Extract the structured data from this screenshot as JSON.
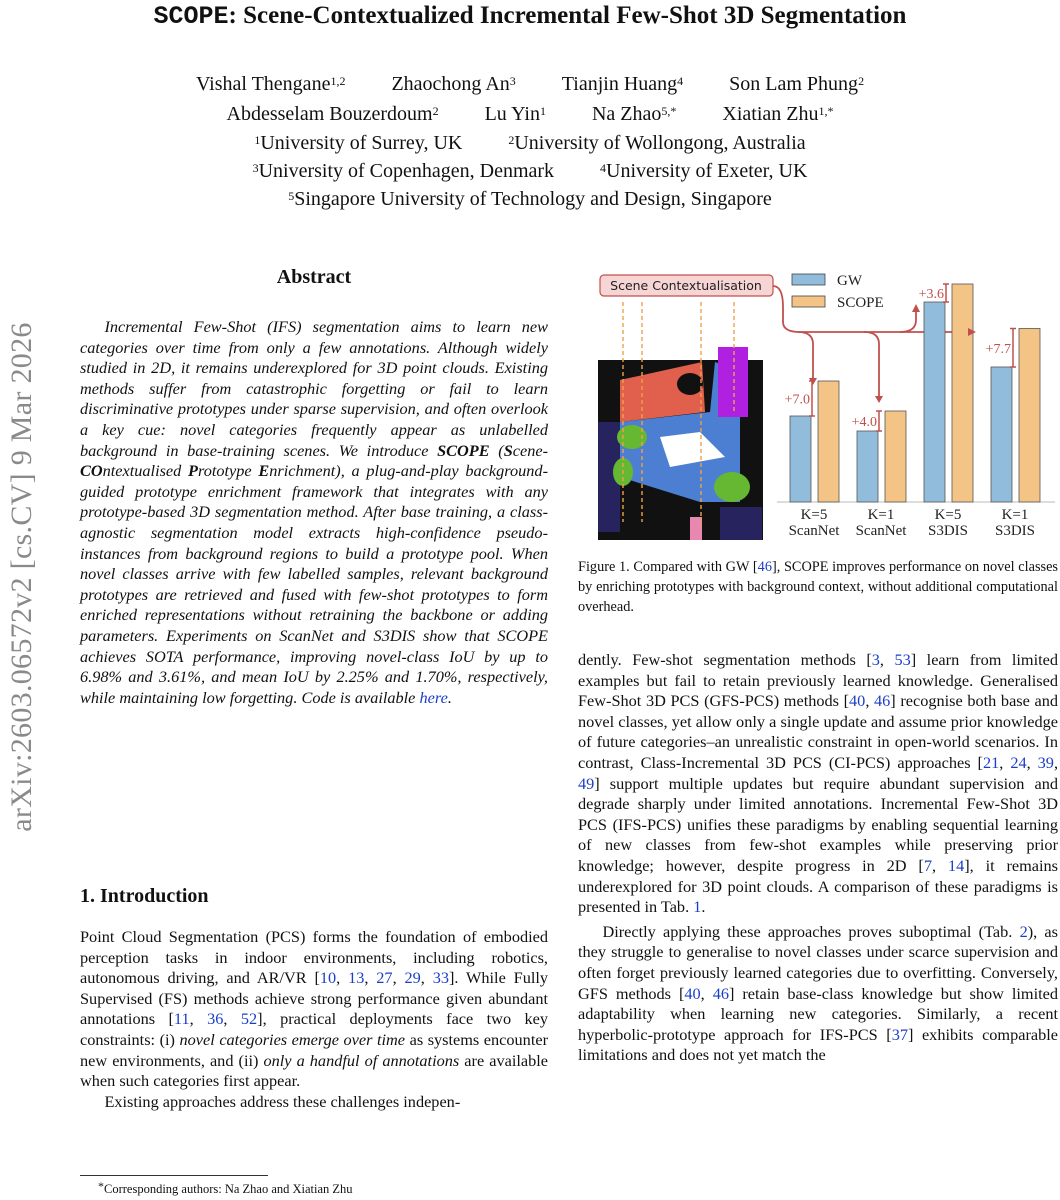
{
  "title": {
    "mono": "SCOPE",
    "rest": ": Scene-Contextualized Incremental Few-Shot 3D Segmentation"
  },
  "authors": {
    "row1": [
      {
        "name": "Vishal Thengane",
        "aff": "1,2"
      },
      {
        "name": "Zhaochong An",
        "aff": "3"
      },
      {
        "name": "Tianjin Huang",
        "aff": "4"
      },
      {
        "name": "Son Lam Phung",
        "aff": "2"
      }
    ],
    "row2": [
      {
        "name": "Abdesselam Bouzerdoum",
        "aff": "2"
      },
      {
        "name": "Lu Yin",
        "aff": "1"
      },
      {
        "name": "Na Zhao",
        "aff": "5,*"
      },
      {
        "name": "Xiatian Zhu",
        "aff": "1,*"
      }
    ],
    "affiliations": [
      [
        {
          "n": "1",
          "t": "University of Surrey, UK"
        },
        {
          "n": "2",
          "t": "University of Wollongong, Australia"
        }
      ],
      [
        {
          "n": "3",
          "t": "University of Copenhagen, Denmark"
        },
        {
          "n": "4",
          "t": "University of Exeter, UK"
        }
      ],
      [
        {
          "n": "5",
          "t": "Singapore University of Technology and Design, Singapore"
        }
      ]
    ]
  },
  "arxiv_stamp": "arXiv:2603.06572v2  [cs.CV]  9 Mar 2026",
  "abstract": {
    "heading": "Abstract",
    "segments": [
      [
        "Incremental Few-Shot (IFS) segmentation aims to learn new categories over time from only a few annotations. Although widely studied in 2D, it remains underexplored for 3D point clouds. Existing methods suffer from catastrophic forgetting or fail to learn discriminative prototypes under sparse supervision, and often overlook a key cue: novel categories frequently appear as unlabelled background in base-training scenes. We introduce ",
        ""
      ],
      [
        "SCOPE",
        "b"
      ],
      [
        " (",
        ""
      ],
      [
        "S",
        "b"
      ],
      [
        "cene-",
        ""
      ],
      [
        "CO",
        "b"
      ],
      [
        "ntextualised ",
        ""
      ],
      [
        "P",
        "b"
      ],
      [
        "rototype ",
        ""
      ],
      [
        "E",
        "b"
      ],
      [
        "nrichment), a plug-and-play background-guided prototype enrichment framework that integrates with any prototype-based 3D segmentation method. After base training, a class-agnostic segmentation model extracts high-confidence pseudo-instances from background regions to build a prototype pool. When novel classes arrive with few labelled samples, relevant background prototypes are retrieved and fused with few-shot prototypes to form enriched representations without retraining the backbone or adding parameters. Experiments on ScanNet and S3DIS show that SCOPE achieves SOTA performance, improving novel-class IoU by up to 6.98% and 3.61%, and mean IoU by 2.25% and 1.70%, respectively, while maintaining low forgetting. Code is available ",
        ""
      ],
      [
        "here",
        "link"
      ],
      [
        ".",
        ""
      ]
    ]
  },
  "introduction": {
    "heading": "1. Introduction",
    "paragraphs": [
      [
        [
          "Point Cloud Segmentation (PCS) forms the foundation of embodied perception tasks in indoor environments, including robotics, autonomous driving, and AR/VR [",
          ""
        ],
        [
          "10",
          "cite"
        ],
        [
          ", ",
          ""
        ],
        [
          "13",
          "cite"
        ],
        [
          ", ",
          ""
        ],
        [
          "27",
          "cite"
        ],
        [
          ", ",
          ""
        ],
        [
          "29",
          "cite"
        ],
        [
          ", ",
          ""
        ],
        [
          "33",
          "cite"
        ],
        [
          "]. While Fully Supervised (FS) methods achieve strong performance given abundant annotations [",
          ""
        ],
        [
          "11",
          "cite"
        ],
        [
          ", ",
          ""
        ],
        [
          "36",
          "cite"
        ],
        [
          ", ",
          ""
        ],
        [
          "52",
          "cite"
        ],
        [
          "], practical deployments face two key constraints: (i) ",
          ""
        ],
        [
          "novel categories emerge over time",
          "em"
        ],
        [
          " as systems encounter new environments, and (ii) ",
          ""
        ],
        [
          "only a handful of annotations",
          "em"
        ],
        [
          " are available when such categories first appear.",
          ""
        ]
      ],
      [
        [
          "Existing approaches address these challenges indepen-",
          ""
        ]
      ]
    ]
  },
  "figure": {
    "scene_label": "Scene Contextualisation",
    "caption_parts": [
      [
        "Figure 1.  Compared with GW [",
        ""
      ],
      [
        "46",
        "cite"
      ],
      [
        "], SCOPE improves performance on novel classes by enriching prototypes with background context, without additional computational overhead.",
        ""
      ]
    ]
  },
  "chart_data": {
    "type": "bar",
    "categories": [
      "K=5\nScanNet",
      "K=1\nScanNet",
      "K=5\nS3DIS",
      "K=1\nS3DIS"
    ],
    "category_lines": [
      [
        "K=5",
        "ScanNet"
      ],
      [
        "K=1",
        "ScanNet"
      ],
      [
        "K=5",
        "S3DIS"
      ],
      [
        "K=1",
        "S3DIS"
      ]
    ],
    "series": [
      {
        "name": "GW",
        "color": "#92bcdc",
        "values": [
          17.2,
          14.2,
          40.0,
          27.0
        ]
      },
      {
        "name": "SCOPE",
        "color": "#f3c486",
        "values": [
          24.2,
          18.2,
          43.6,
          34.7
        ]
      }
    ],
    "annotations": [
      "+7.0",
      "+4.0",
      "+3.6",
      "+7.7"
    ],
    "annotation_color": "#c0504d",
    "legend": "top-left",
    "grid": false,
    "title": "",
    "xlabel": "",
    "ylabel": ""
  },
  "right_column": {
    "paragraphs": [
      [
        [
          "dently. Few-shot segmentation methods [",
          ""
        ],
        [
          "3",
          "cite"
        ],
        [
          ", ",
          ""
        ],
        [
          "53",
          "cite"
        ],
        [
          "] learn from limited examples but fail to retain previously learned knowledge. Generalised Few-Shot 3D PCS (GFS-PCS) methods [",
          ""
        ],
        [
          "40",
          "cite"
        ],
        [
          ", ",
          ""
        ],
        [
          "46",
          "cite"
        ],
        [
          "] recognise both base and novel classes, yet allow only a single update and assume prior knowledge of future categories–an unrealistic constraint in open-world scenarios. In contrast, Class-Incremental 3D PCS (CI-PCS) approaches [",
          ""
        ],
        [
          "21",
          "cite"
        ],
        [
          ", ",
          ""
        ],
        [
          "24",
          "cite"
        ],
        [
          ", ",
          ""
        ],
        [
          "39",
          "cite"
        ],
        [
          ", ",
          ""
        ],
        [
          "49",
          "cite"
        ],
        [
          "] support multiple updates but require abundant supervision and degrade sharply under limited annotations. Incremental Few-Shot 3D PCS (IFS-PCS) unifies these paradigms by enabling sequential learning of new classes from few-shot examples while preserving prior knowledge; however, despite progress in 2D [",
          ""
        ],
        [
          "7",
          "cite"
        ],
        [
          ", ",
          ""
        ],
        [
          "14",
          "cite"
        ],
        [
          "], it remains underexplored for 3D point clouds. A comparison of these paradigms is presented in Tab. ",
          ""
        ],
        [
          "1",
          "cite"
        ],
        [
          ".",
          ""
        ]
      ],
      [
        [
          "Directly applying these approaches proves suboptimal (Tab. ",
          ""
        ],
        [
          "2",
          "cite"
        ],
        [
          "), as they struggle to generalise to novel classes under scarce supervision and often forget previously learned categories due to overfitting. Conversely, GFS methods [",
          ""
        ],
        [
          "40",
          "cite"
        ],
        [
          ", ",
          ""
        ],
        [
          "46",
          "cite"
        ],
        [
          "] retain base-class knowledge but show limited adaptability when learning new categories. Similarly, a recent hyperbolic-prototype approach for IFS-PCS [",
          ""
        ],
        [
          "37",
          "cite"
        ],
        [
          "] exhibits comparable limitations and does not yet match the",
          ""
        ]
      ]
    ]
  },
  "footnote": {
    "mark": "*",
    "text": "Corresponding authors: Na Zhao and Xiatian Zhu"
  }
}
